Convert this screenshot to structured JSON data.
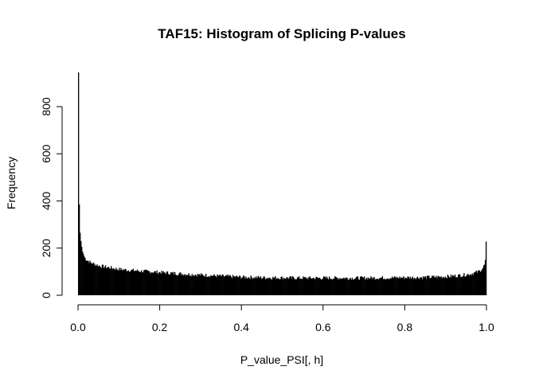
{
  "chart_data": {
    "type": "bar",
    "title": "TAF15: Histogram of Splicing P-values",
    "xlabel": "P_value_PSI[, h]",
    "ylabel": "Frequency",
    "xlim": [
      0,
      1
    ],
    "ylim": [
      0,
      900
    ],
    "x_ticks": [
      "0.0",
      "0.2",
      "0.4",
      "0.6",
      "0.8",
      "1.0"
    ],
    "y_ticks": [
      "0",
      "200",
      "400",
      "600",
      "800"
    ],
    "bin_width": 0.002,
    "grid": false,
    "bar_color": "#000000",
    "anchors": [
      [
        0.0,
        945
      ],
      [
        0.002,
        385
      ],
      [
        0.004,
        265
      ],
      [
        0.006,
        230
      ],
      [
        0.008,
        205
      ],
      [
        0.01,
        185
      ],
      [
        0.015,
        160
      ],
      [
        0.02,
        150
      ],
      [
        0.03,
        138
      ],
      [
        0.05,
        125
      ],
      [
        0.1,
        110
      ],
      [
        0.15,
        103
      ],
      [
        0.2,
        97
      ],
      [
        0.25,
        91
      ],
      [
        0.3,
        86
      ],
      [
        0.35,
        81
      ],
      [
        0.4,
        77
      ],
      [
        0.45,
        75
      ],
      [
        0.5,
        74
      ],
      [
        0.55,
        73
      ],
      [
        0.6,
        73
      ],
      [
        0.65,
        73
      ],
      [
        0.7,
        73
      ],
      [
        0.75,
        74
      ],
      [
        0.8,
        75
      ],
      [
        0.85,
        76
      ],
      [
        0.9,
        79
      ],
      [
        0.94,
        85
      ],
      [
        0.96,
        90
      ],
      [
        0.98,
        100
      ],
      [
        0.99,
        115
      ],
      [
        0.994,
        130
      ],
      [
        0.996,
        150
      ],
      [
        0.998,
        228
      ]
    ]
  }
}
